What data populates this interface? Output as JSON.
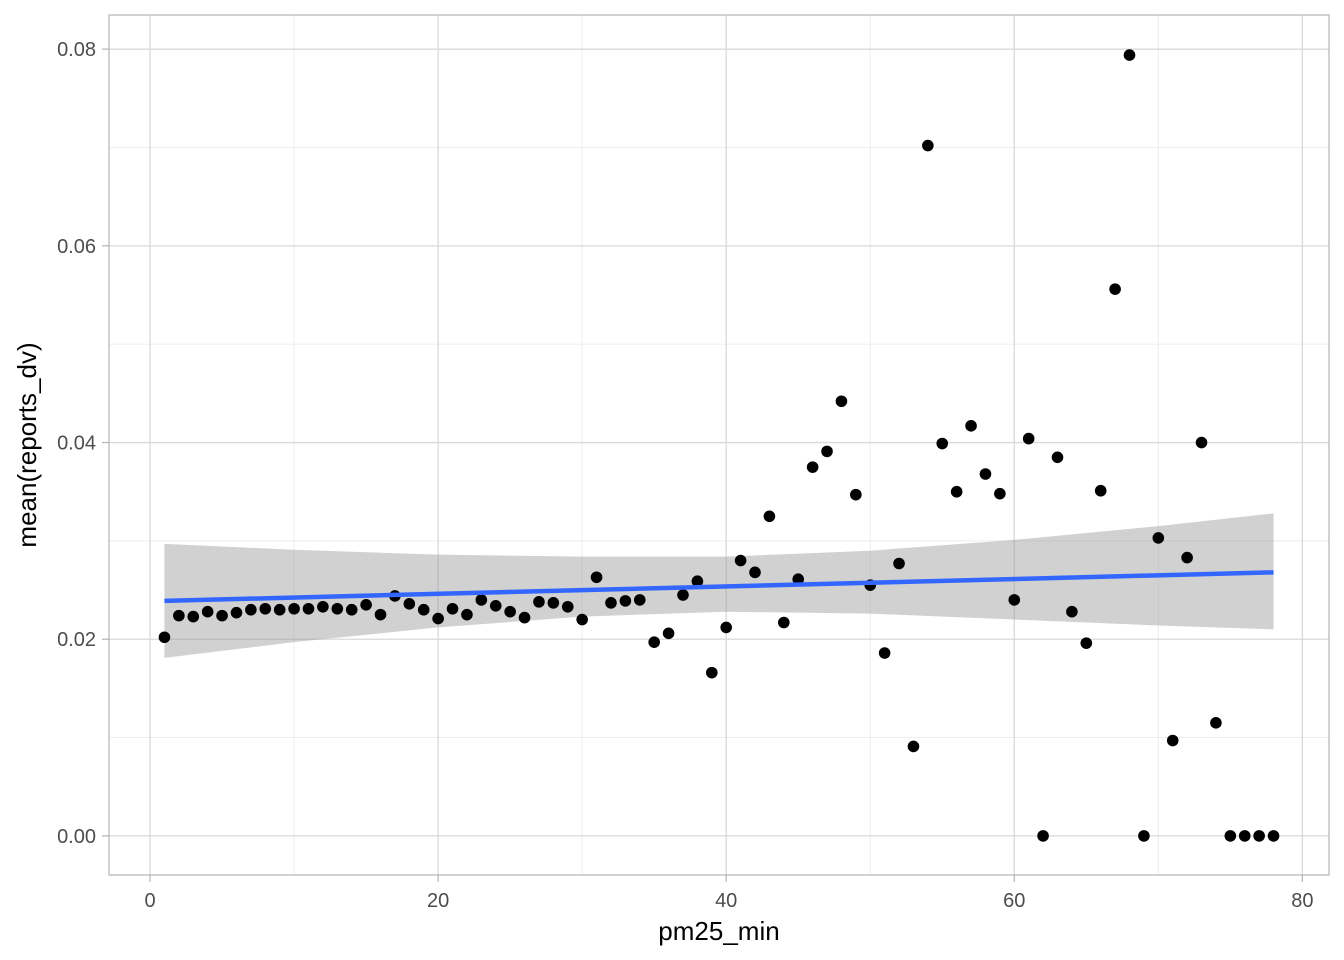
{
  "chart_data": {
    "type": "scatter",
    "title": "",
    "xlabel": "pm25_min",
    "ylabel": "mean(reports_dv)",
    "xlim": [
      -2.85,
      81.85
    ],
    "ylim": [
      -0.003975,
      0.083475
    ],
    "xticks": [
      0,
      20,
      40,
      60,
      80
    ],
    "xtick_labels": [
      "0",
      "20",
      "40",
      "60",
      "80"
    ],
    "yticks": [
      0,
      0.02,
      0.04,
      0.06,
      0.08
    ],
    "ytick_labels": [
      "0.00",
      "0.02",
      "0.04",
      "0.06",
      "0.08"
    ],
    "x_minor": [
      10,
      30,
      50,
      70
    ],
    "y_minor": [
      0.01,
      0.03,
      0.05,
      0.07
    ],
    "grid": true,
    "theme": "light",
    "colors": {
      "points": "#000000",
      "smooth_line": "#3366FF",
      "ribbon": "#999999",
      "grid_major": "#d9d9d9",
      "grid_minor": "#ececec",
      "panel_border": "#b3b3b3"
    },
    "points": [
      [
        1,
        0.0202
      ],
      [
        2,
        0.0224
      ],
      [
        3,
        0.0223
      ],
      [
        4,
        0.0228
      ],
      [
        5,
        0.0224
      ],
      [
        6,
        0.0227
      ],
      [
        7,
        0.023
      ],
      [
        8,
        0.0231
      ],
      [
        9,
        0.023
      ],
      [
        10,
        0.0231
      ],
      [
        11,
        0.0231
      ],
      [
        12,
        0.0233
      ],
      [
        13,
        0.0231
      ],
      [
        14,
        0.023
      ],
      [
        15,
        0.0235
      ],
      [
        16,
        0.0225
      ],
      [
        17,
        0.0244
      ],
      [
        18,
        0.0236
      ],
      [
        19,
        0.023
      ],
      [
        20,
        0.0221
      ],
      [
        21,
        0.0231
      ],
      [
        22,
        0.0225
      ],
      [
        23,
        0.024
      ],
      [
        24,
        0.0234
      ],
      [
        25,
        0.0228
      ],
      [
        26,
        0.0222
      ],
      [
        27,
        0.0238
      ],
      [
        28,
        0.0237
      ],
      [
        29,
        0.0233
      ],
      [
        30,
        0.022
      ],
      [
        31,
        0.0263
      ],
      [
        32,
        0.0237
      ],
      [
        33,
        0.0239
      ],
      [
        34,
        0.024
      ],
      [
        35,
        0.0197
      ],
      [
        36,
        0.0206
      ],
      [
        37,
        0.0245
      ],
      [
        38,
        0.0259
      ],
      [
        39,
        0.0166
      ],
      [
        40,
        0.0212
      ],
      [
        41,
        0.028
      ],
      [
        42,
        0.0268
      ],
      [
        43,
        0.0325
      ],
      [
        44,
        0.0217
      ],
      [
        45,
        0.0261
      ],
      [
        46,
        0.0375
      ],
      [
        47,
        0.0391
      ],
      [
        48,
        0.0442
      ],
      [
        49,
        0.0347
      ],
      [
        50,
        0.0255
      ],
      [
        51,
        0.0186
      ],
      [
        52,
        0.0277
      ],
      [
        53,
        0.0091
      ],
      [
        54,
        0.0702
      ],
      [
        55,
        0.0399
      ],
      [
        56,
        0.035
      ],
      [
        57,
        0.0417
      ],
      [
        58,
        0.0368
      ],
      [
        59,
        0.0348
      ],
      [
        60,
        0.024
      ],
      [
        61,
        0.0404
      ],
      [
        62,
        0.0
      ],
      [
        63,
        0.0385
      ],
      [
        64,
        0.0228
      ],
      [
        65,
        0.0196
      ],
      [
        66,
        0.0351
      ],
      [
        67,
        0.0556
      ],
      [
        68,
        0.0794
      ],
      [
        69,
        0.0
      ],
      [
        70,
        0.0303
      ],
      [
        71,
        0.0097
      ],
      [
        72,
        0.0283
      ],
      [
        73,
        0.04
      ],
      [
        74,
        0.0115
      ],
      [
        75,
        0.0
      ],
      [
        76,
        0.0
      ],
      [
        77,
        0.0
      ],
      [
        78,
        0.0
      ]
    ],
    "smooth_line": {
      "method": "linear",
      "x": [
        1,
        78
      ],
      "y": [
        0.0239,
        0.0268
      ]
    },
    "ribbon": {
      "x": [
        1,
        10,
        20,
        30,
        40,
        50,
        60,
        70,
        78
      ],
      "ymin": [
        0.0181,
        0.0197,
        0.0212,
        0.0223,
        0.0228,
        0.0226,
        0.022,
        0.0214,
        0.021
      ],
      "ymax": [
        0.0297,
        0.0291,
        0.0286,
        0.0284,
        0.0284,
        0.029,
        0.0301,
        0.0315,
        0.0328
      ]
    }
  }
}
